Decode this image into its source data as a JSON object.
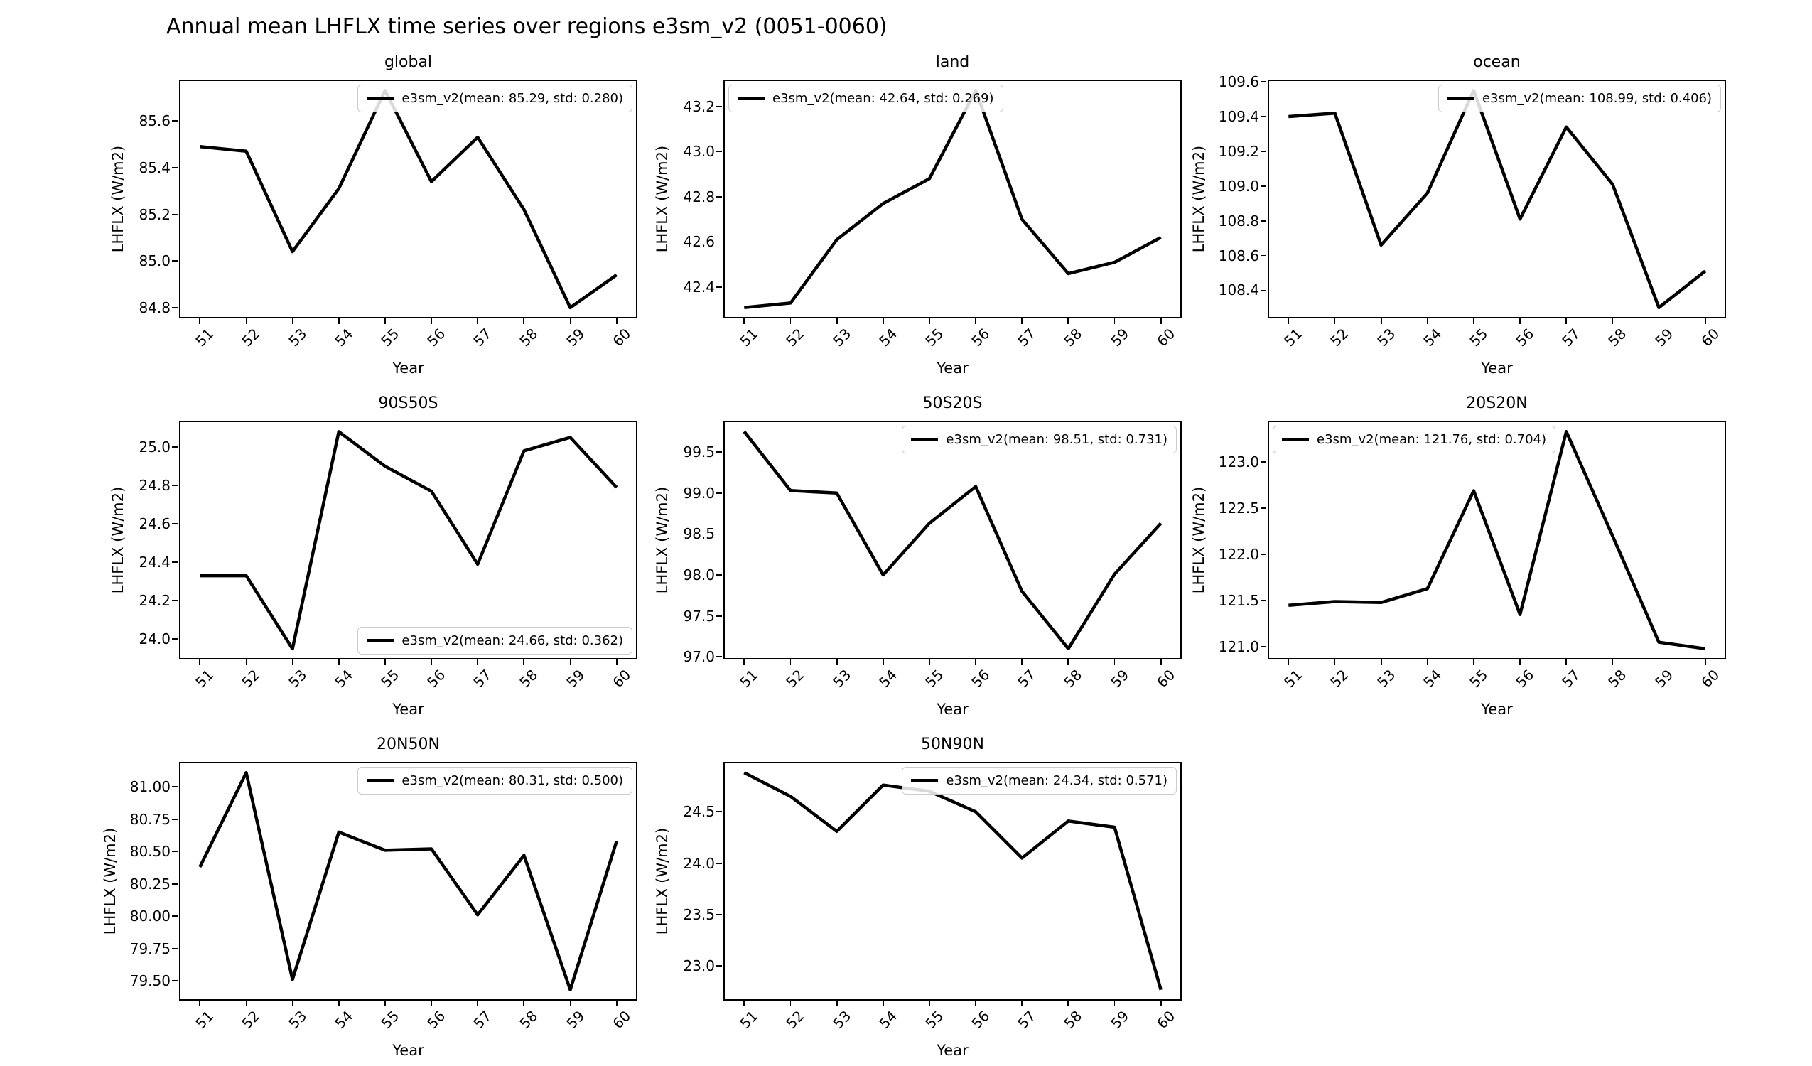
{
  "figure_title": "Annual mean LHFLX time series over regions e3sm_v2 (0051-0060)",
  "colors": {
    "line": "#000000",
    "text": "#000000",
    "legend_border": "#cccccc",
    "background": "#ffffff"
  },
  "chart_data": [
    {
      "type": "line",
      "title": "global",
      "xlabel": "Year",
      "ylabel": "LHFLX (W/m2)",
      "x": [
        51,
        52,
        53,
        54,
        55,
        56,
        57,
        58,
        59,
        60
      ],
      "xtick_labels": [
        "51",
        "52",
        "53",
        "54",
        "55",
        "56",
        "57",
        "58",
        "59",
        "60"
      ],
      "series": [
        {
          "name": "e3sm_v2",
          "values": [
            85.49,
            85.47,
            85.04,
            85.31,
            85.73,
            85.34,
            85.53,
            85.22,
            84.8,
            84.94
          ]
        }
      ],
      "legend": {
        "label": "e3sm_v2(mean: 85.29, std: 0.280)",
        "position": "upper-right"
      },
      "xlim": [
        50.55,
        60.45
      ],
      "ylim": [
        84.754,
        85.777
      ],
      "yticks": [
        84.8,
        85.0,
        85.2,
        85.4,
        85.6
      ],
      "ytick_labels": [
        "84.8",
        "85.0",
        "85.2",
        "85.4",
        "85.6"
      ],
      "grid": false
    },
    {
      "type": "line",
      "title": "land",
      "xlabel": "Year",
      "ylabel": "LHFLX (W/m2)",
      "x": [
        51,
        52,
        53,
        54,
        55,
        56,
        57,
        58,
        59,
        60
      ],
      "xtick_labels": [
        "51",
        "52",
        "53",
        "54",
        "55",
        "56",
        "57",
        "58",
        "59",
        "60"
      ],
      "series": [
        {
          "name": "e3sm_v2",
          "values": [
            42.31,
            42.33,
            42.61,
            42.77,
            42.88,
            43.27,
            42.7,
            42.46,
            42.51,
            42.62
          ]
        }
      ],
      "legend": {
        "label": "e3sm_v2(mean: 42.64, std: 0.269)",
        "position": "upper-left"
      },
      "xlim": [
        50.55,
        60.45
      ],
      "ylim": [
        42.262,
        43.318
      ],
      "yticks": [
        42.4,
        42.6,
        42.8,
        43.0,
        43.2
      ],
      "ytick_labels": [
        "42.4",
        "42.6",
        "42.8",
        "43.0",
        "43.2"
      ],
      "grid": false
    },
    {
      "type": "line",
      "title": "ocean",
      "xlabel": "Year",
      "ylabel": "LHFLX (W/m2)",
      "x": [
        51,
        52,
        53,
        54,
        55,
        56,
        57,
        58,
        59,
        60
      ],
      "xtick_labels": [
        "51",
        "52",
        "53",
        "54",
        "55",
        "56",
        "57",
        "58",
        "59",
        "60"
      ],
      "series": [
        {
          "name": "e3sm_v2",
          "values": [
            109.4,
            109.42,
            108.66,
            108.96,
            109.55,
            108.81,
            109.34,
            109.01,
            108.3,
            108.51
          ]
        }
      ],
      "legend": {
        "label": "e3sm_v2(mean: 108.99, std: 0.406)",
        "position": "upper-right"
      },
      "xlim": [
        50.55,
        60.45
      ],
      "ylim": [
        108.238,
        109.613
      ],
      "yticks": [
        108.4,
        108.6,
        108.8,
        109.0,
        109.2,
        109.4,
        109.6
      ],
      "ytick_labels": [
        "108.4",
        "108.6",
        "108.8",
        "109.0",
        "109.2",
        "109.4",
        "109.6"
      ],
      "grid": false
    },
    {
      "type": "line",
      "title": "90S50S",
      "xlabel": "Year",
      "ylabel": "LHFLX (W/m2)",
      "x": [
        51,
        52,
        53,
        54,
        55,
        56,
        57,
        58,
        59,
        60
      ],
      "xtick_labels": [
        "51",
        "52",
        "53",
        "54",
        "55",
        "56",
        "57",
        "58",
        "59",
        "60"
      ],
      "series": [
        {
          "name": "e3sm_v2",
          "values": [
            24.33,
            24.33,
            23.95,
            25.08,
            24.9,
            24.77,
            24.39,
            24.98,
            25.05,
            24.79
          ]
        }
      ],
      "legend": {
        "label": "e3sm_v2(mean: 24.66, std: 0.362)",
        "position": "lower-right"
      },
      "xlim": [
        50.55,
        60.45
      ],
      "ylim": [
        23.894,
        25.137
      ],
      "yticks": [
        24.0,
        24.2,
        24.4,
        24.6,
        24.8,
        25.0
      ],
      "ytick_labels": [
        "24.0",
        "24.2",
        "24.4",
        "24.6",
        "24.8",
        "25.0"
      ],
      "grid": false
    },
    {
      "type": "line",
      "title": "50S20S",
      "xlabel": "Year",
      "ylabel": "LHFLX (W/m2)",
      "x": [
        51,
        52,
        53,
        54,
        55,
        56,
        57,
        58,
        59,
        60
      ],
      "xtick_labels": [
        "51",
        "52",
        "53",
        "54",
        "55",
        "56",
        "57",
        "58",
        "59",
        "60"
      ],
      "series": [
        {
          "name": "e3sm_v2",
          "values": [
            99.75,
            99.03,
            99.0,
            98.0,
            98.63,
            99.08,
            97.8,
            97.1,
            98.01,
            98.63
          ]
        }
      ],
      "legend": {
        "label": "e3sm_v2(mean: 98.51, std: 0.731)",
        "position": "upper-right"
      },
      "xlim": [
        50.55,
        60.45
      ],
      "ylim": [
        96.968,
        99.883
      ],
      "yticks": [
        97.0,
        97.5,
        98.0,
        98.5,
        99.0,
        99.5
      ],
      "ytick_labels": [
        "97.0",
        "97.5",
        "98.0",
        "98.5",
        "99.0",
        "99.5"
      ],
      "grid": false
    },
    {
      "type": "line",
      "title": "20S20N",
      "xlabel": "Year",
      "ylabel": "LHFLX (W/m2)",
      "x": [
        51,
        52,
        53,
        54,
        55,
        56,
        57,
        58,
        59,
        60
      ],
      "xtick_labels": [
        "51",
        "52",
        "53",
        "54",
        "55",
        "56",
        "57",
        "58",
        "59",
        "60"
      ],
      "series": [
        {
          "name": "e3sm_v2",
          "values": [
            121.45,
            121.49,
            121.48,
            121.63,
            122.69,
            121.35,
            123.33,
            122.2,
            121.05,
            120.98
          ]
        }
      ],
      "legend": {
        "label": "e3sm_v2(mean: 121.76, std: 0.704)",
        "position": "upper-left"
      },
      "xlim": [
        50.55,
        60.45
      ],
      "ylim": [
        120.863,
        123.448
      ],
      "yticks": [
        121.0,
        121.5,
        122.0,
        122.5,
        123.0
      ],
      "ytick_labels": [
        "121.0",
        "121.5",
        "122.0",
        "122.5",
        "123.0"
      ],
      "grid": false
    },
    {
      "type": "line",
      "title": "20N50N",
      "xlabel": "Year",
      "ylabel": "LHFLX (W/m2)",
      "x": [
        51,
        52,
        53,
        54,
        55,
        56,
        57,
        58,
        59,
        60
      ],
      "xtick_labels": [
        "51",
        "52",
        "53",
        "54",
        "55",
        "56",
        "57",
        "58",
        "59",
        "60"
      ],
      "series": [
        {
          "name": "e3sm_v2",
          "values": [
            80.38,
            81.11,
            79.51,
            80.65,
            80.51,
            80.52,
            80.01,
            80.47,
            79.43,
            80.58
          ]
        }
      ],
      "legend": {
        "label": "e3sm_v2(mean: 80.31, std: 0.500)",
        "position": "upper-right"
      },
      "xlim": [
        50.55,
        60.45
      ],
      "ylim": [
        79.346,
        81.194
      ],
      "yticks": [
        79.5,
        79.75,
        80.0,
        80.25,
        80.5,
        80.75,
        81.0
      ],
      "ytick_labels": [
        "79.50",
        "79.75",
        "80.00",
        "80.25",
        "80.50",
        "80.75",
        "81.00"
      ],
      "grid": false
    },
    {
      "type": "line",
      "title": "50N90N",
      "xlabel": "Year",
      "ylabel": "LHFLX (W/m2)",
      "x": [
        51,
        52,
        53,
        54,
        55,
        56,
        57,
        58,
        59,
        60
      ],
      "xtick_labels": [
        "51",
        "52",
        "53",
        "54",
        "55",
        "56",
        "57",
        "58",
        "59",
        "60"
      ],
      "series": [
        {
          "name": "e3sm_v2",
          "values": [
            24.88,
            24.65,
            24.31,
            24.76,
            24.7,
            24.5,
            24.05,
            24.41,
            24.35,
            22.77
          ]
        }
      ],
      "legend": {
        "label": "e3sm_v2(mean: 24.34, std: 0.571)",
        "position": "upper-right"
      },
      "xlim": [
        50.55,
        60.45
      ],
      "ylim": [
        22.664,
        24.986
      ],
      "yticks": [
        23.0,
        23.5,
        24.0,
        24.5
      ],
      "ytick_labels": [
        "23.0",
        "23.5",
        "24.0",
        "24.5"
      ],
      "grid": false
    }
  ]
}
